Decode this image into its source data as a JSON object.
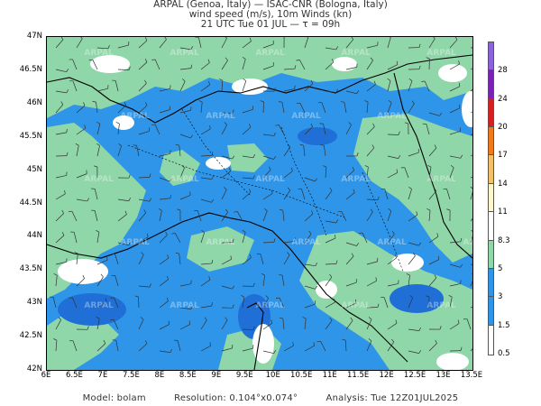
{
  "header": {
    "line1": "ARPAL (Genoa, Italy)  —  ISAC-CNR (Bologna, Italy)",
    "line2": "wind speed (m/s), 10m Winds (kn)",
    "line3": "21 UTC Tue 01 JUL  —  τ = 09h"
  },
  "map": {
    "lat_labels": [
      "47N",
      "46.5N",
      "46N",
      "45.5N",
      "45N",
      "44.5N",
      "44N",
      "43.5N",
      "43N",
      "42.5N",
      "42N"
    ],
    "lon_labels": [
      "6E",
      "6.5E",
      "7E",
      "7.5E",
      "8E",
      "8.5E",
      "9E",
      "9.5E",
      "10E",
      "10.5E",
      "11E",
      "11.5E",
      "12E",
      "12.5E",
      "13E",
      "13.5E"
    ],
    "watermark": "ARPAL",
    "colors": {
      "sea_blue": "#2f95e8",
      "dark_blue": "#1f6fd6",
      "green": "#8fd6a8",
      "white": "#ffffff",
      "border": "#000000"
    }
  },
  "colorbar": {
    "labels": [
      "28",
      "24",
      "20",
      "17",
      "14",
      "11",
      "8.3",
      "5",
      "3",
      "1.5",
      "0.5"
    ],
    "colors": [
      "#8a62d9",
      "#7a22b8",
      "#d42020",
      "#f07a1a",
      "#f3c06a",
      "#fff7cc",
      "#ffffff",
      "#8fd6a8",
      "#2f95e8",
      "#2f95e8",
      "#ffffff"
    ]
  },
  "footer": {
    "model": "Model: bolam",
    "resolution": "Resolution: 0.104°x0.074°",
    "analysis": "Analysis: Tue 12Z01JUL2025"
  }
}
